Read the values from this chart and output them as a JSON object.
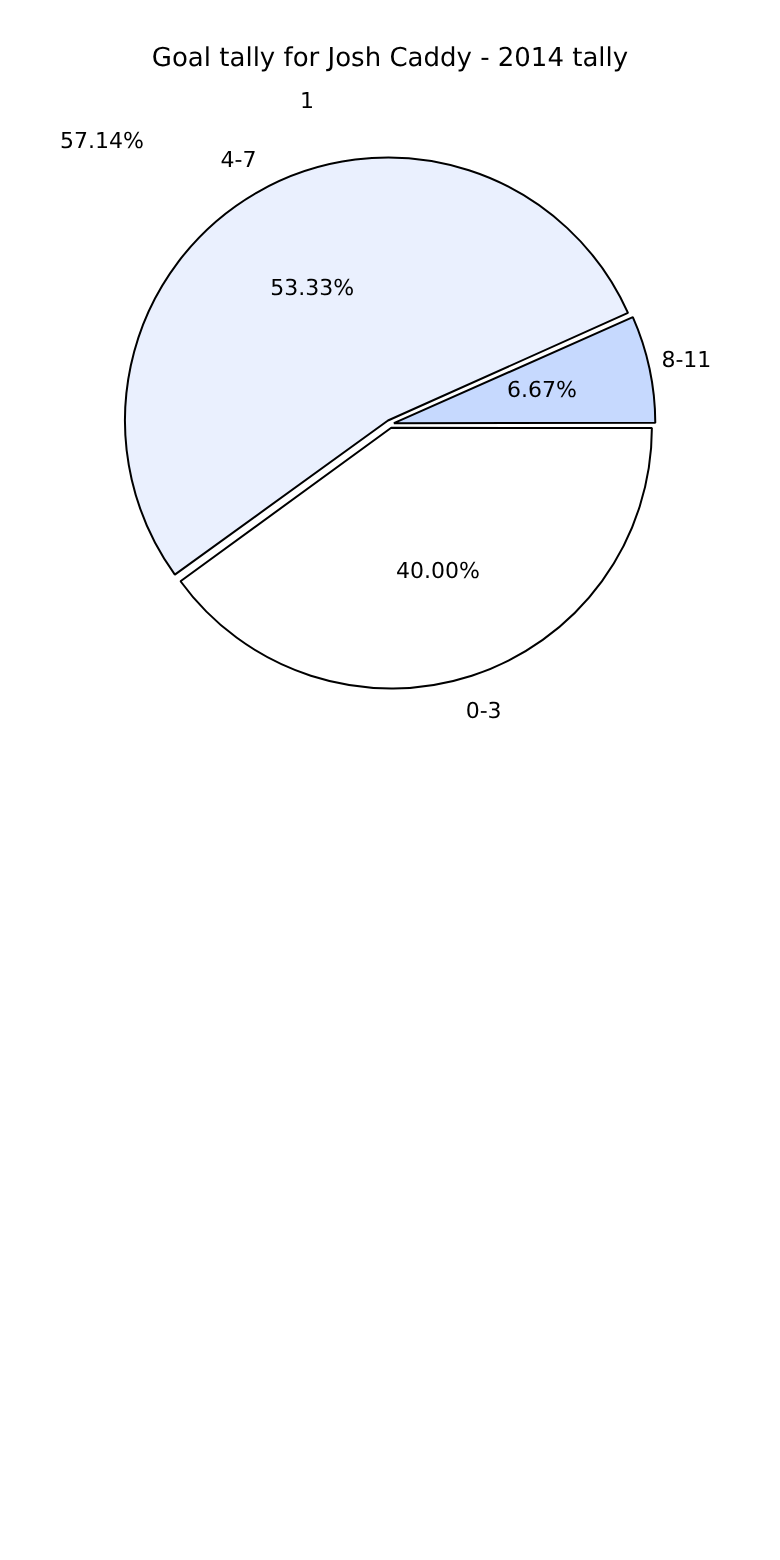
{
  "chart_data": {
    "type": "pie",
    "title": "Goal tally for Josh Caddy - 2014 tally",
    "categories": [
      "0-3",
      "4-7",
      "8-11"
    ],
    "values": [
      40.0,
      53.33,
      6.67
    ],
    "colors": [
      "#ffffff",
      "#eaf0fe",
      "#c6d9fe"
    ],
    "value_labels": [
      "40.00%",
      "53.33%",
      "6.67%"
    ],
    "annotations": [
      "1",
      "57.14%"
    ]
  }
}
